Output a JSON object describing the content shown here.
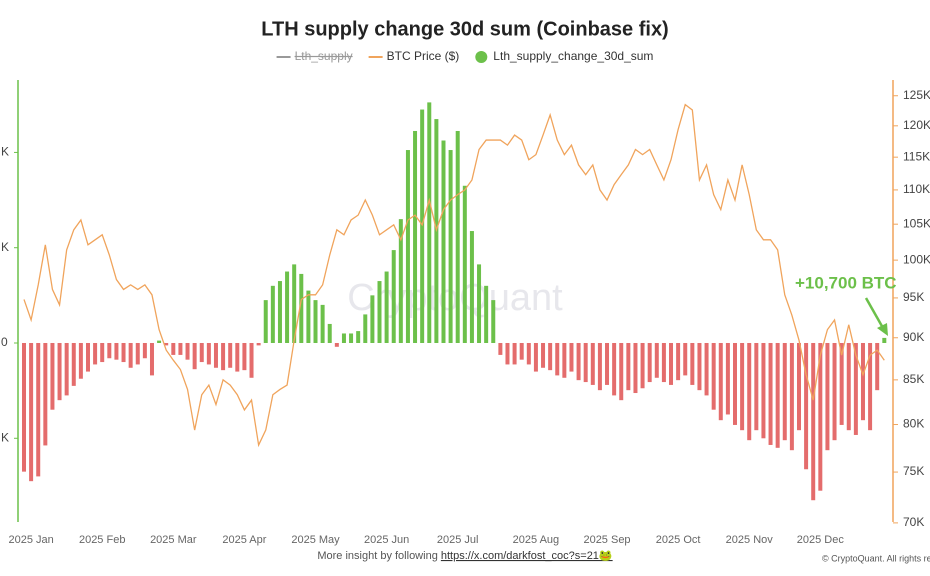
{
  "chart_data": {
    "type": "bar_line",
    "title": "LTH supply change 30d sum (Coinbase fix)",
    "legend_position": "top",
    "categories": [
      null,
      "2025 Jan",
      null,
      null,
      null,
      null,
      null,
      null,
      null,
      null,
      null,
      "2025 Feb",
      null,
      null,
      null,
      null,
      null,
      null,
      null,
      null,
      null,
      "2025 Mar",
      null,
      null,
      null,
      null,
      null,
      null,
      null,
      null,
      null,
      "2025 Apr",
      null,
      null,
      null,
      null,
      null,
      null,
      null,
      null,
      null,
      "2025 May",
      null,
      null,
      null,
      null,
      null,
      null,
      null,
      null,
      null,
      "2025 Jun",
      null,
      null,
      null,
      null,
      null,
      null,
      null,
      null,
      null,
      "2025 Jul",
      null,
      null,
      null,
      null,
      null,
      null,
      null,
      null,
      null,
      null,
      "2025 Aug",
      null,
      null,
      null,
      null,
      null,
      null,
      null,
      null,
      null,
      "2025 Sep",
      null,
      null,
      null,
      null,
      null,
      null,
      null,
      null,
      null,
      "2025 Oct",
      null,
      null,
      null,
      null,
      null,
      null,
      null,
      null,
      null,
      "2025 Nov",
      null,
      null,
      null,
      null,
      null,
      null,
      null,
      null,
      null,
      "2025 Dec",
      null,
      null,
      null,
      null,
      null,
      null,
      null,
      null,
      null
    ],
    "series": [
      {
        "name": "Lth_supply",
        "type": "line",
        "color": "#999999",
        "visible": false
      },
      {
        "name": "BTC Price ($)",
        "type": "line",
        "color": "#f0a45c",
        "axis": "y2",
        "values": [
          94800,
          92200,
          96700,
          102100,
          96100,
          94100,
          101400,
          104200,
          105600,
          102100,
          102800,
          103500,
          100700,
          97400,
          96100,
          96700,
          96100,
          96700,
          95400,
          91000,
          88500,
          87300,
          86200,
          83900,
          79400,
          83300,
          84400,
          82200,
          85000,
          84400,
          83300,
          81600,
          82700,
          77800,
          79400,
          83300,
          83900,
          84400,
          89700,
          94800,
          95400,
          95400,
          96700,
          100700,
          104200,
          103500,
          105600,
          106300,
          108500,
          106300,
          103500,
          104200,
          104900,
          102800,
          105600,
          106300,
          104900,
          108500,
          104200,
          107100,
          108500,
          109300,
          110000,
          111500,
          116200,
          117700,
          117700,
          117700,
          116900,
          118500,
          117700,
          114600,
          115400,
          118500,
          121800,
          117700,
          115400,
          116900,
          113800,
          112300,
          113800,
          110000,
          108500,
          110800,
          112300,
          113800,
          116200,
          115400,
          116200,
          113800,
          111500,
          114600,
          119400,
          123500,
          122600,
          111500,
          113800,
          109300,
          107100,
          111500,
          108500,
          113800,
          109300,
          104200,
          102800,
          102800,
          101400,
          95400,
          92800,
          89700,
          85600,
          82700,
          87900,
          91000,
          92200,
          87900,
          91600,
          87900,
          85600,
          87900,
          88500,
          87300
        ]
      },
      {
        "name": "Lth_supply_change_30d_sum",
        "type": "bar",
        "color": "#6cc04a",
        "negative_color": "#e46c6c",
        "values": [
          -270000,
          -290000,
          -280000,
          -215000,
          -140000,
          -120000,
          -110000,
          -90000,
          -75000,
          -60000,
          -45000,
          -40000,
          -32000,
          -35000,
          -40000,
          -52000,
          -45000,
          -32000,
          -68000,
          5000,
          -5000,
          -25000,
          -25000,
          -35000,
          -55000,
          -40000,
          -45000,
          -52000,
          -57000,
          -52000,
          -60000,
          -57000,
          -73000,
          -5000,
          90000,
          120000,
          130000,
          150000,
          165000,
          145000,
          110000,
          90000,
          80000,
          40000,
          -8000,
          20000,
          20000,
          25000,
          60000,
          100000,
          130000,
          150000,
          195000,
          260000,
          405000,
          445000,
          490000,
          505000,
          470000,
          425000,
          405000,
          445000,
          330000,
          235000,
          165000,
          120000,
          90000,
          -25000,
          -45000,
          -45000,
          -35000,
          -45000,
          -60000,
          -52000,
          -57000,
          -68000,
          -73000,
          -60000,
          -78000,
          -82000,
          -88000,
          -99000,
          -88000,
          -110000,
          -120000,
          -99000,
          -105000,
          -95000,
          -82000,
          -73000,
          -82000,
          -88000,
          -78000,
          -68000,
          -88000,
          -99000,
          -110000,
          -140000,
          -162000,
          -150000,
          -172000,
          -183000,
          -204000,
          -183000,
          -200000,
          -214000,
          -220000,
          -204000,
          -225000,
          -183000,
          -265000,
          -330000,
          -310000,
          -225000,
          -204000,
          -172000,
          -183000,
          -193000,
          -162000,
          -183000,
          -99000,
          10700
        ]
      }
    ],
    "ylim": [
      -382000,
      552000
    ],
    "yticks": [
      {
        "value": 400000,
        "label": "K"
      },
      {
        "value": 200000,
        "label": "K"
      },
      0,
      {
        "value": -200000,
        "label": "K"
      }
    ],
    "y2lim": [
      69800,
      127700
    ],
    "y2_log": true,
    "y2ticks": [
      {
        "value": 125000,
        "label": "125K"
      },
      {
        "value": 120000,
        "label": "120K"
      },
      {
        "value": 115000,
        "label": "115K"
      },
      {
        "value": 110000,
        "label": "110K"
      },
      {
        "value": 105000,
        "label": "105K"
      },
      {
        "value": 100000,
        "label": "100K"
      },
      {
        "value": 95000,
        "label": "95K"
      },
      {
        "value": 90000,
        "label": "90K"
      },
      {
        "value": 85000,
        "label": "85K"
      },
      {
        "value": 80000,
        "label": "80K"
      },
      {
        "value": 75000,
        "label": "75K"
      },
      {
        "value": 70000,
        "label": "70K"
      }
    ],
    "annotation": "+10,700 BTC",
    "watermark": "CryptoQuant",
    "footer": "More insight by following ",
    "footer_link": "https://x.com/darkfost_coc?s=21🐸",
    "credit": "© CryptoQuant. All rights res"
  }
}
